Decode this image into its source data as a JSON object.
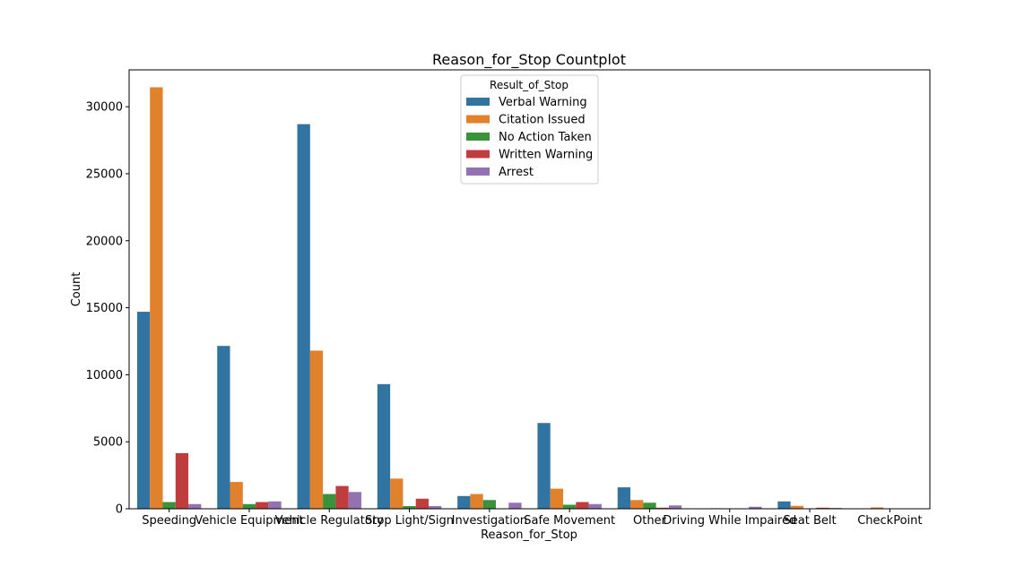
{
  "chart_data": {
    "type": "bar",
    "title": "Reason_for_Stop Countplot",
    "xlabel": "Reason_for_Stop",
    "ylabel": "Count",
    "ylim": [
      0,
      32750
    ],
    "yticks": [
      0,
      5000,
      10000,
      15000,
      20000,
      25000,
      30000
    ],
    "grid": false,
    "legend": {
      "title": "Result_of_Stop",
      "placement": "upper center"
    },
    "categories": [
      "Speeding",
      "Vehicle Equipment",
      "Vehicle Regulatory",
      "Stop Light/Sign",
      "Investigation",
      "Safe Movement",
      "Other",
      "Driving While Impaired",
      "Seat Belt",
      "CheckPoint"
    ],
    "series": [
      {
        "name": "Verbal Warning",
        "color": "#3274a1",
        "values": [
          14700,
          12150,
          28700,
          9300,
          950,
          6400,
          1600,
          30,
          550,
          20
        ]
      },
      {
        "name": "Citation Issued",
        "color": "#e1812c",
        "values": [
          31450,
          2000,
          11800,
          2250,
          1100,
          1500,
          650,
          40,
          220,
          100
        ]
      },
      {
        "name": "No Action Taken",
        "color": "#3a923a",
        "values": [
          500,
          350,
          1100,
          200,
          650,
          300,
          450,
          20,
          30,
          10
        ]
      },
      {
        "name": "Written Warning",
        "color": "#c03d3e",
        "values": [
          4150,
          500,
          1700,
          750,
          30,
          500,
          80,
          30,
          80,
          10
        ]
      },
      {
        "name": "Arrest",
        "color": "#9372b2",
        "values": [
          350,
          550,
          1250,
          200,
          450,
          350,
          250,
          150,
          60,
          10
        ]
      }
    ]
  }
}
